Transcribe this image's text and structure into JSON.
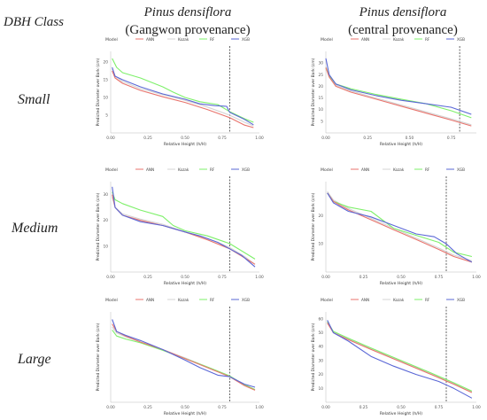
{
  "header": {
    "dbh_class": "DBH Class",
    "col1_species": "Pinus densiflora",
    "col1_prov": "(Gangwon provenance)",
    "col2_species": "Pinus densiflora",
    "col2_prov": "(central provenance)"
  },
  "rows": [
    "Small",
    "Medium",
    "Large"
  ],
  "legend": {
    "title": "Model",
    "items": [
      {
        "name": "ANN",
        "color": "#e8736c"
      },
      {
        "name": "Kozak",
        "color": "#d4d4d4"
      },
      {
        "name": "RF",
        "color": "#7ef06a"
      },
      {
        "name": "XGB",
        "color": "#5a67d6"
      }
    ]
  },
  "axis_labels": {
    "x": "Relative Height (h/H)",
    "y": "Predicted Diameter over Bark (cm)"
  },
  "chart_data": [
    {
      "type": "line",
      "row": "Small",
      "column": "Gangwon provenance",
      "xlim": [
        0,
        1
      ],
      "ylim": [
        0,
        23
      ],
      "xticks": [
        "0.00",
        "0.25",
        "0.50",
        "0.75",
        "1.00"
      ],
      "yticks": [
        "5",
        "10",
        "15",
        "20"
      ],
      "vline": 0.8,
      "series": [
        {
          "name": "ANN",
          "x": [
            0.01,
            0.03,
            0.08,
            0.2,
            0.35,
            0.5,
            0.65,
            0.8,
            0.9,
            0.96
          ],
          "y": [
            17.5,
            15.5,
            14.0,
            12.0,
            10.2,
            8.6,
            6.6,
            4.3,
            2.2,
            1.5
          ]
        },
        {
          "name": "Kozak",
          "x": [
            0.01,
            0.03,
            0.08,
            0.2,
            0.35,
            0.5,
            0.65,
            0.8,
            0.9,
            0.96
          ],
          "y": [
            18.0,
            16.0,
            14.5,
            12.5,
            10.8,
            9.2,
            7.3,
            5.0,
            3.0,
            2.0
          ]
        },
        {
          "name": "RF",
          "x": [
            0.01,
            0.04,
            0.08,
            0.2,
            0.35,
            0.42,
            0.5,
            0.6,
            0.72,
            0.8,
            0.9,
            0.96
          ],
          "y": [
            21.0,
            18.5,
            17.0,
            15.5,
            13.0,
            11.5,
            10.0,
            8.8,
            8.0,
            6.0,
            4.0,
            3.0
          ]
        },
        {
          "name": "XGB",
          "x": [
            0.01,
            0.03,
            0.08,
            0.2,
            0.35,
            0.5,
            0.6,
            0.7,
            0.78,
            0.8,
            0.85,
            0.9,
            0.96
          ],
          "y": [
            18.5,
            16.0,
            15.0,
            13.0,
            11.0,
            9.5,
            8.2,
            7.7,
            7.5,
            5.8,
            4.8,
            3.8,
            2.3
          ]
        }
      ]
    },
    {
      "type": "line",
      "row": "Small",
      "column": "central provenance",
      "xlim": [
        0,
        0.9
      ],
      "ylim": [
        0,
        35
      ],
      "xticks": [
        "0.00",
        "0.25",
        "0.50",
        "0.75"
      ],
      "yticks": [
        "5",
        "10",
        "15",
        "20",
        "25",
        "30"
      ],
      "vline": 0.8,
      "series": [
        {
          "name": "ANN",
          "x": [
            0.0,
            0.02,
            0.06,
            0.15,
            0.3,
            0.45,
            0.6,
            0.75,
            0.87
          ],
          "y": [
            28.0,
            24.0,
            20.0,
            17.5,
            14.5,
            11.5,
            8.5,
            5.5,
            3.0
          ]
        },
        {
          "name": "Kozak",
          "x": [
            0.0,
            0.02,
            0.06,
            0.15,
            0.3,
            0.45,
            0.6,
            0.75,
            0.87
          ],
          "y": [
            28.5,
            24.5,
            20.5,
            18.0,
            15.0,
            12.0,
            9.0,
            6.0,
            3.5
          ]
        },
        {
          "name": "RF",
          "x": [
            0.0,
            0.02,
            0.06,
            0.15,
            0.3,
            0.45,
            0.6,
            0.75,
            0.87
          ],
          "y": [
            28.0,
            24.5,
            21.0,
            19.0,
            16.5,
            14.5,
            12.5,
            9.5,
            6.5
          ]
        },
        {
          "name": "XGB",
          "x": [
            0.0,
            0.02,
            0.06,
            0.15,
            0.3,
            0.45,
            0.6,
            0.75,
            0.87
          ],
          "y": [
            32.0,
            25.0,
            21.0,
            18.5,
            16.0,
            14.0,
            12.5,
            11.0,
            8.0
          ]
        }
      ]
    },
    {
      "type": "line",
      "row": "Medium",
      "column": "Gangwon provenance",
      "xlim": [
        0,
        1
      ],
      "ylim": [
        0,
        35
      ],
      "xticks": [
        "0.00",
        "0.25",
        "0.50",
        "0.75",
        "1.00"
      ],
      "yticks": [
        "10",
        "20",
        "30"
      ],
      "vline": 0.8,
      "series": [
        {
          "name": "ANN",
          "x": [
            0.01,
            0.03,
            0.08,
            0.2,
            0.35,
            0.5,
            0.65,
            0.8,
            0.9,
            0.97
          ],
          "y": [
            30.0,
            25.0,
            22.0,
            20.0,
            18.0,
            15.5,
            12.5,
            9.0,
            5.5,
            3.0
          ]
        },
        {
          "name": "Kozak",
          "x": [
            0.01,
            0.03,
            0.08,
            0.2,
            0.35,
            0.5,
            0.65,
            0.8,
            0.9,
            0.97
          ],
          "y": [
            29.0,
            25.0,
            22.5,
            20.5,
            18.5,
            15.5,
            13.0,
            9.5,
            6.0,
            3.0
          ]
        },
        {
          "name": "RF",
          "x": [
            0.01,
            0.03,
            0.08,
            0.2,
            0.35,
            0.42,
            0.5,
            0.65,
            0.8,
            0.9,
            0.97
          ],
          "y": [
            31.0,
            28.0,
            26.5,
            24.0,
            21.5,
            18.0,
            16.0,
            14.0,
            11.0,
            7.5,
            5.0
          ]
        },
        {
          "name": "XGB",
          "x": [
            0.01,
            0.03,
            0.08,
            0.2,
            0.35,
            0.5,
            0.6,
            0.72,
            0.8,
            0.88,
            0.97
          ],
          "y": [
            33.0,
            25.0,
            22.0,
            19.5,
            18.0,
            15.5,
            14.0,
            11.5,
            9.0,
            6.5,
            2.0
          ]
        }
      ]
    },
    {
      "type": "line",
      "row": "Medium",
      "column": "central provenance",
      "xlim": [
        0,
        1
      ],
      "ylim": [
        0,
        32
      ],
      "xticks": [
        "0.00",
        "0.25",
        "0.50",
        "0.75",
        "1.00"
      ],
      "yticks": [
        "10",
        "20"
      ],
      "vline": 0.8,
      "series": [
        {
          "name": "ANN",
          "x": [
            0.01,
            0.05,
            0.15,
            0.3,
            0.45,
            0.6,
            0.75,
            0.85,
            0.97
          ],
          "y": [
            28.0,
            25.0,
            22.0,
            18.5,
            15.0,
            11.5,
            8.0,
            5.5,
            3.5
          ]
        },
        {
          "name": "Kozak",
          "x": [
            0.01,
            0.05,
            0.15,
            0.3,
            0.45,
            0.6,
            0.75,
            0.85,
            0.97
          ],
          "y": [
            28.5,
            25.5,
            22.5,
            19.0,
            15.5,
            12.0,
            8.5,
            6.0,
            4.0
          ]
        },
        {
          "name": "RF",
          "x": [
            0.01,
            0.05,
            0.15,
            0.3,
            0.45,
            0.6,
            0.75,
            0.85,
            0.97
          ],
          "y": [
            28.0,
            25.0,
            23.0,
            21.5,
            15.5,
            13.0,
            10.5,
            7.0,
            5.5
          ]
        },
        {
          "name": "XGB",
          "x": [
            0.01,
            0.05,
            0.15,
            0.3,
            0.45,
            0.6,
            0.72,
            0.8,
            0.87,
            0.97
          ],
          "y": [
            28.0,
            24.5,
            21.5,
            19.5,
            16.5,
            13.5,
            12.5,
            10.0,
            6.5,
            3.5
          ]
        }
      ]
    },
    {
      "type": "line",
      "row": "Large",
      "column": "Gangwon provenance",
      "xlim": [
        0,
        1
      ],
      "ylim": [
        0,
        60
      ],
      "xticks": [
        "0.00",
        "0.25",
        "0.50",
        "0.75",
        "1.00"
      ],
      "yticks": [],
      "vline": 0.8,
      "series": [
        {
          "name": "ANN",
          "x": [
            0.01,
            0.04,
            0.1,
            0.2,
            0.35,
            0.5,
            0.65,
            0.8,
            0.9,
            0.97
          ],
          "y": [
            52.0,
            47.0,
            44.0,
            40.0,
            35.0,
            29.0,
            23.0,
            17.0,
            11.0,
            8.0
          ]
        },
        {
          "name": "Kozak",
          "x": [
            0.01,
            0.04,
            0.1,
            0.2,
            0.35,
            0.5,
            0.65,
            0.8,
            0.9,
            0.97
          ],
          "y": [
            50.0,
            46.0,
            43.5,
            40.0,
            35.0,
            29.5,
            23.5,
            17.5,
            11.5,
            8.5
          ]
        },
        {
          "name": "RF",
          "x": [
            0.01,
            0.04,
            0.1,
            0.2,
            0.35,
            0.5,
            0.65,
            0.8,
            0.9,
            0.97
          ],
          "y": [
            48.0,
            44.0,
            42.0,
            39.5,
            34.5,
            29.0,
            23.5,
            17.5,
            11.5,
            8.5
          ]
        },
        {
          "name": "XGB",
          "x": [
            0.01,
            0.04,
            0.1,
            0.2,
            0.35,
            0.5,
            0.6,
            0.72,
            0.8,
            0.9,
            0.97
          ],
          "y": [
            55.0,
            47.0,
            44.5,
            41.0,
            35.0,
            28.0,
            23.0,
            18.0,
            17.0,
            12.0,
            10.0
          ]
        }
      ]
    },
    {
      "type": "line",
      "row": "Large",
      "column": "central provenance",
      "xlim": [
        0,
        1
      ],
      "ylim": [
        0,
        65
      ],
      "xticks": [
        "0.00",
        "0.25",
        "0.50",
        "0.75",
        "1.00"
      ],
      "yticks": [
        "10",
        "20",
        "30",
        "40",
        "50",
        "60"
      ],
      "vline": 0.8,
      "series": [
        {
          "name": "ANN",
          "x": [
            0.01,
            0.05,
            0.15,
            0.3,
            0.5,
            0.7,
            0.85,
            0.97
          ],
          "y": [
            57.0,
            50.0,
            45.0,
            38.0,
            29.0,
            20.0,
            13.0,
            7.0
          ]
        },
        {
          "name": "Kozak",
          "x": [
            0.01,
            0.05,
            0.15,
            0.3,
            0.5,
            0.7,
            0.85,
            0.97
          ],
          "y": [
            57.5,
            50.5,
            45.5,
            38.5,
            29.5,
            20.5,
            13.5,
            7.5
          ]
        },
        {
          "name": "RF",
          "x": [
            0.01,
            0.05,
            0.15,
            0.3,
            0.5,
            0.7,
            0.85,
            0.97
          ],
          "y": [
            58.0,
            51.0,
            46.0,
            39.0,
            30.0,
            21.0,
            14.0,
            8.0
          ]
        },
        {
          "name": "XGB",
          "x": [
            0.01,
            0.05,
            0.15,
            0.3,
            0.45,
            0.6,
            0.75,
            0.85,
            0.97
          ],
          "y": [
            59.0,
            50.0,
            44.0,
            33.0,
            26.0,
            20.0,
            15.0,
            10.0,
            3.0
          ]
        }
      ]
    }
  ]
}
